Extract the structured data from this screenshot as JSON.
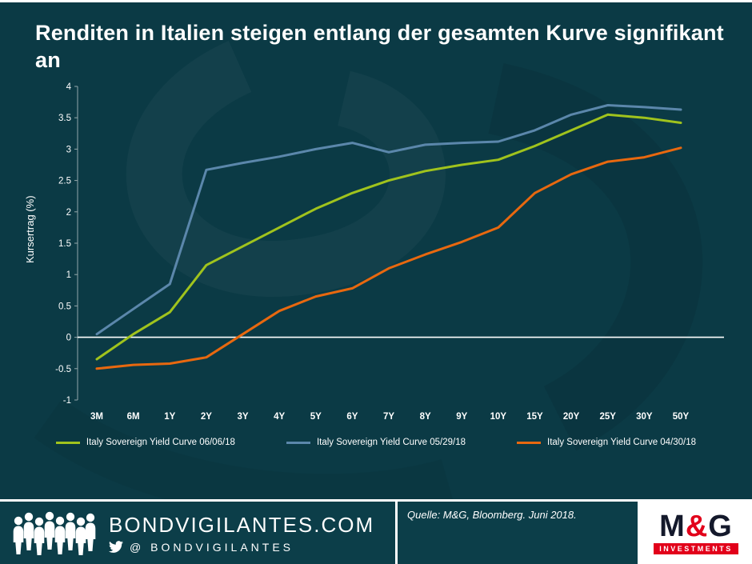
{
  "title": "Renditen in Italien steigen entlang der gesamten Kurve signifikant an",
  "chart_data": {
    "type": "line",
    "title": "Renditen in Italien steigen entlang der gesamten Kurve signifikant an",
    "xlabel": "",
    "ylabel": "Kursertrag (%)",
    "ylim": [
      -1,
      4
    ],
    "ytick_step": 0.5,
    "grid": false,
    "zero_line": true,
    "legend_position": "bottom",
    "categories": [
      "3M",
      "6M",
      "1Y",
      "2Y",
      "3Y",
      "4Y",
      "5Y",
      "6Y",
      "7Y",
      "8Y",
      "9Y",
      "10Y",
      "15Y",
      "20Y",
      "25Y",
      "30Y",
      "50Y"
    ],
    "series": [
      {
        "name": "Italy Sovereign Yield Curve 06/06/18",
        "color": "#a0c31d",
        "values": [
          -0.35,
          0.05,
          0.4,
          1.15,
          1.45,
          1.75,
          2.05,
          2.3,
          2.5,
          2.65,
          2.75,
          2.83,
          3.05,
          3.3,
          3.55,
          3.5,
          3.42
        ]
      },
      {
        "name": "Italy Sovereign Yield Curve 05/29/18",
        "color": "#5b87ab",
        "values": [
          0.05,
          0.45,
          0.85,
          2.67,
          2.78,
          2.88,
          3.0,
          3.1,
          2.95,
          3.07,
          3.1,
          3.12,
          3.3,
          3.55,
          3.7,
          3.67,
          3.63
        ]
      },
      {
        "name": "Italy Sovereign Yield Curve 04/30/18",
        "color": "#e8680f",
        "values": [
          -0.5,
          -0.44,
          -0.42,
          -0.32,
          0.05,
          0.42,
          0.65,
          0.78,
          1.1,
          1.32,
          1.52,
          1.75,
          2.3,
          2.6,
          2.8,
          2.87,
          3.02
        ]
      }
    ]
  },
  "footer": {
    "site": "BONDVIGILANTES.COM",
    "twitter": "@ BONDVIGILANTES",
    "source": "Quelle: M&G, Bloomberg.  Juni 2018.",
    "logo": {
      "m": "M",
      "amp": "&",
      "g": "G",
      "investments": "INVESTMENTS",
      "red": "#e2001a"
    }
  },
  "colors": {
    "background": "#0b3a45",
    "text": "#ffffff",
    "axis": "#93a7aa"
  }
}
